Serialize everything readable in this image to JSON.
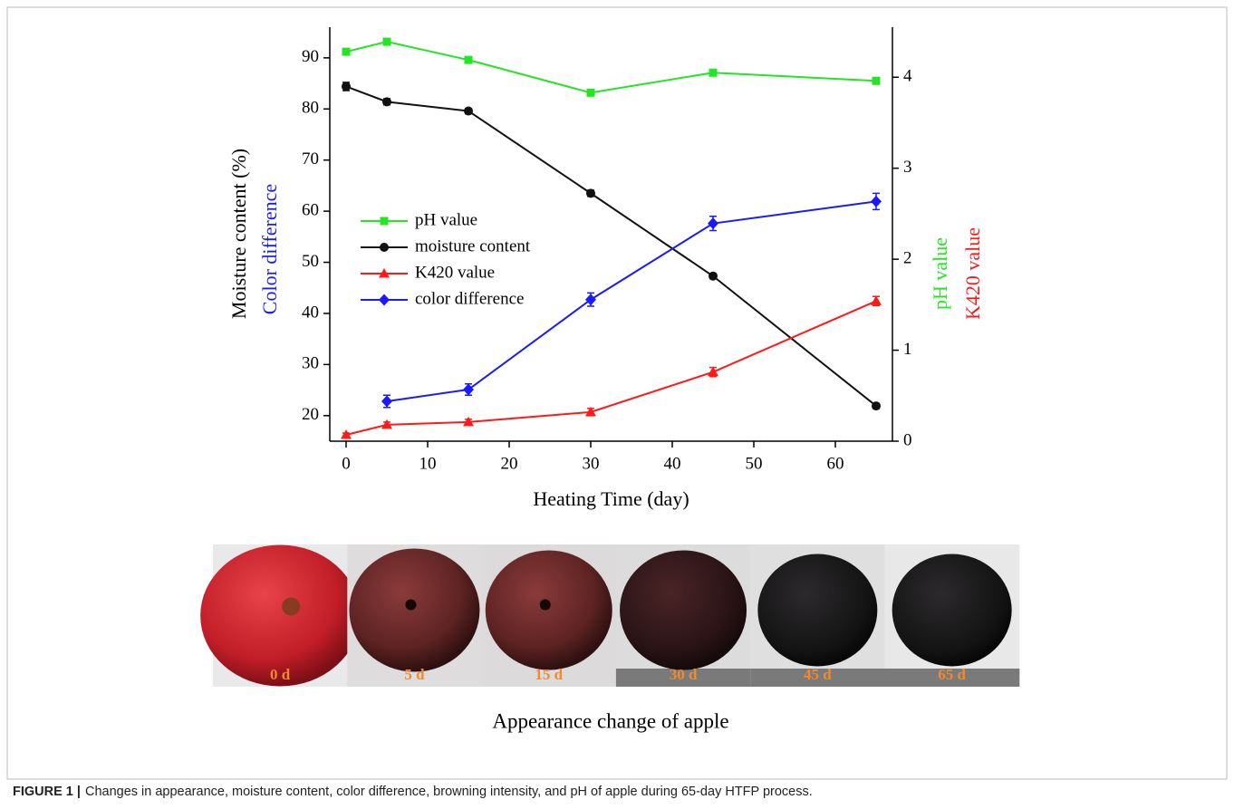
{
  "chart_data": {
    "type": "line",
    "xlabel": "Heating Time (day)",
    "ylabel": "Moisture content (%)",
    "ylabel_secondary": "Color difference",
    "y2label": "pH value",
    "y2label_secondary": "K420 value",
    "x": [
      0,
      5,
      15,
      30,
      45,
      65
    ],
    "xlim": [
      -2,
      67
    ],
    "xticks": [
      0,
      10,
      20,
      30,
      40,
      50,
      60
    ],
    "ylim": [
      15,
      96
    ],
    "yticks": [
      20,
      30,
      40,
      50,
      60,
      70,
      80,
      90
    ],
    "y2lim": [
      0,
      4.55
    ],
    "y2ticks": [
      0,
      1,
      2,
      3,
      4
    ],
    "series": [
      {
        "name": "pH value",
        "color": "#22e622",
        "marker": "square",
        "axis": "y2",
        "values": [
          4.28,
          4.39,
          4.19,
          3.83,
          4.05,
          3.96
        ],
        "errors": [
          0.03,
          0.03,
          0.03,
          0.03,
          0.03,
          0.03
        ]
      },
      {
        "name": "moisture content",
        "color": "#111111",
        "marker": "circle",
        "axis": "y",
        "values": [
          84.4,
          81.4,
          79.6,
          63.5,
          47.3,
          21.9
        ],
        "errors": [
          0.8,
          0.6,
          0.5,
          0.6,
          0.5,
          0.5
        ]
      },
      {
        "name": "K420 value",
        "color": "#ff1a1a",
        "marker": "triangle",
        "axis": "y2",
        "values": [
          0.07,
          0.18,
          0.21,
          0.32,
          0.76,
          1.54
        ],
        "errors": [
          0.02,
          0.03,
          0.03,
          0.04,
          0.05,
          0.05
        ]
      },
      {
        "name": "color difference",
        "color": "#1a1aff",
        "marker": "diamond",
        "axis": "y",
        "values": [
          null,
          22.8,
          25.1,
          42.7,
          57.6,
          61.9
        ],
        "errors": [
          null,
          1.2,
          1.1,
          1.3,
          1.4,
          1.6
        ]
      }
    ]
  },
  "photos": {
    "labels": [
      "0 d",
      "5 d",
      "15 d",
      "30 d",
      "45 d",
      "65 d"
    ],
    "title": "Appearance change of apple"
  },
  "caption": {
    "label": "FIGURE 1 |",
    "text": "Changes in appearance, moisture content, color difference, browning intensity, and pH of apple during 65-day HTFP process."
  }
}
